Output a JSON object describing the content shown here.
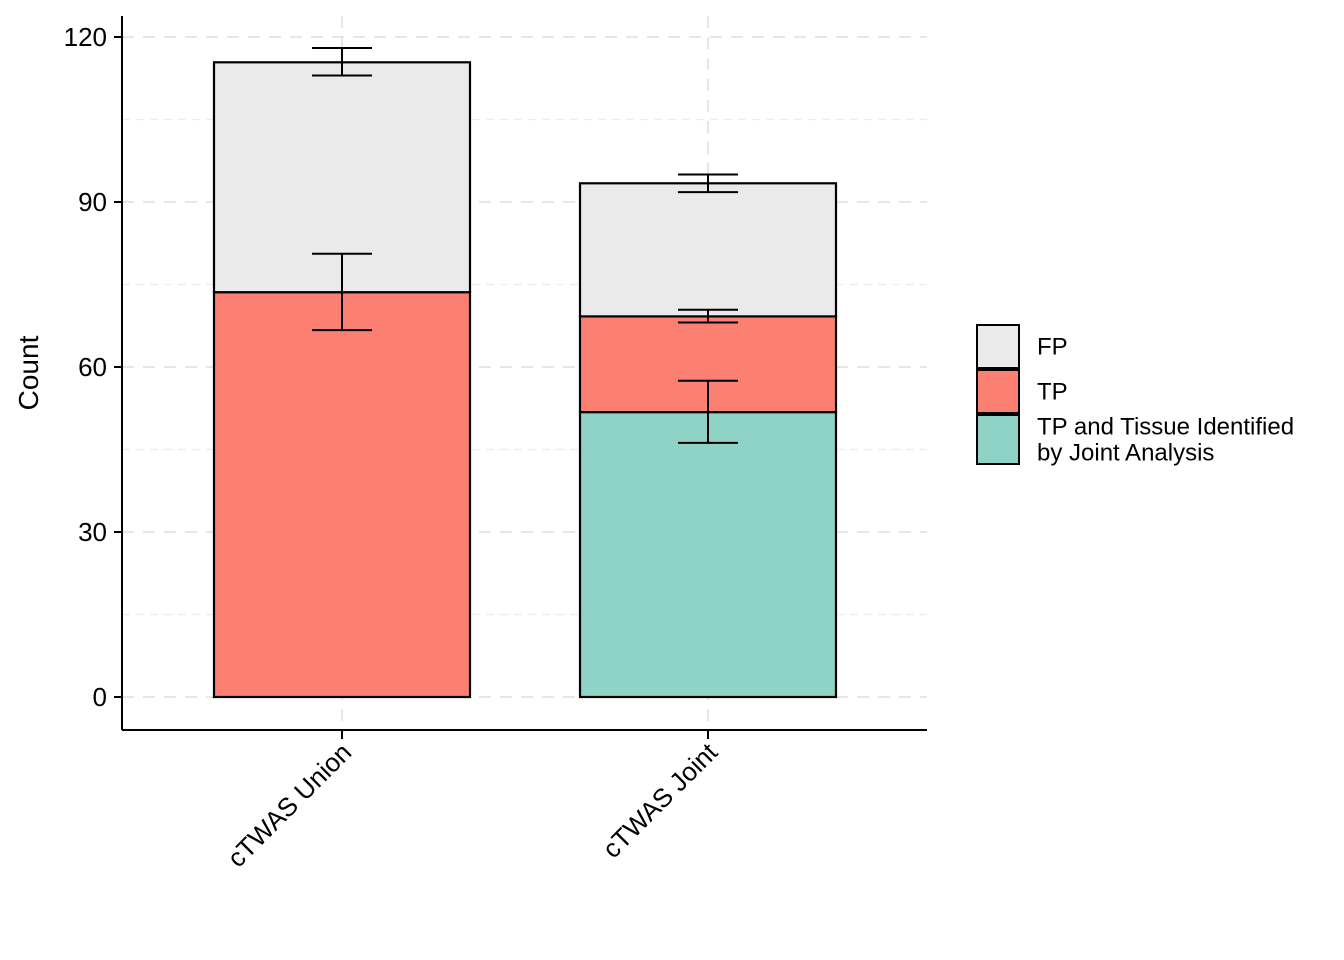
{
  "chart_data": {
    "type": "bar",
    "stacked": true,
    "title": "",
    "xlabel": "",
    "ylabel": "Count",
    "ylim": [
      -6,
      124
    ],
    "yticks": [
      0,
      30,
      60,
      90,
      120
    ],
    "grid": true,
    "legend_position": "right",
    "categories": [
      "cTWAS Union",
      "cTWAS Joint"
    ],
    "series": [
      {
        "name": "TP and Tissue Identified by Joint Analysis",
        "legend_lines": [
          "TP and Tissue Identified",
          "by Joint Analysis"
        ],
        "color": "#8FD3C7",
        "values": [
          0,
          51.8
        ],
        "error": [
          null,
          [
            46.2,
            57.5
          ]
        ]
      },
      {
        "name": "TP",
        "legend_lines": [
          "TP"
        ],
        "color": "#FB8072",
        "values": [
          73.6,
          17.4
        ],
        "error": [
          [
            66.7,
            80.6
          ],
          [
            68.1,
            70.4
          ]
        ]
      },
      {
        "name": "FP",
        "legend_lines": [
          "FP"
        ],
        "color": "#EAEAEA",
        "values": [
          41.8,
          24.2
        ],
        "error": [
          [
            113.0,
            118.0
          ],
          [
            91.8,
            95.0
          ]
        ]
      }
    ]
  }
}
